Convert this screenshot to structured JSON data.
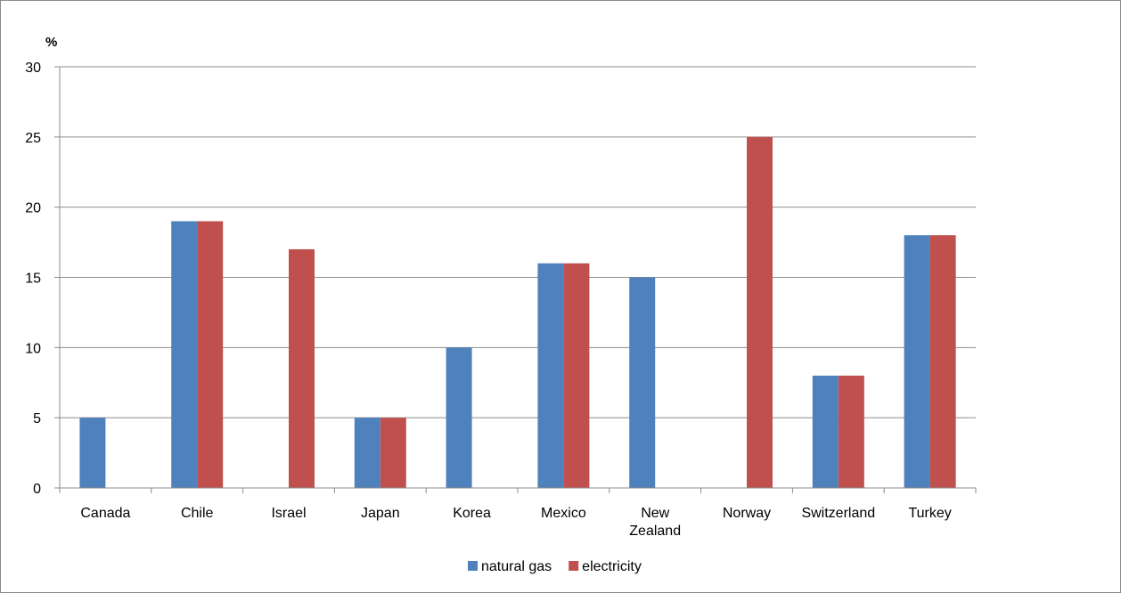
{
  "chart_data": {
    "type": "bar",
    "unit_label": "%",
    "categories": [
      [
        "Canada"
      ],
      [
        "Chile"
      ],
      [
        "Israel"
      ],
      [
        "Japan"
      ],
      [
        "Korea"
      ],
      [
        "Mexico"
      ],
      [
        "New",
        "Zealand"
      ],
      [
        "Norway"
      ],
      [
        "Switzerland"
      ],
      [
        "Turkey"
      ]
    ],
    "series": [
      {
        "name": "natural gas",
        "color": "#4f81bd",
        "values": [
          5,
          19,
          0,
          5,
          10,
          16,
          15,
          0,
          8,
          18
        ]
      },
      {
        "name": "electricity",
        "color": "#c0504d",
        "values": [
          0,
          19,
          17,
          5,
          0,
          16,
          0,
          25,
          8,
          18
        ]
      }
    ],
    "ylim": [
      0,
      30
    ],
    "yticks": [
      0,
      5,
      10,
      15,
      20,
      25,
      30
    ],
    "grid": true,
    "legend_position": "bottom-center",
    "xlabel": "",
    "ylabel": ""
  }
}
